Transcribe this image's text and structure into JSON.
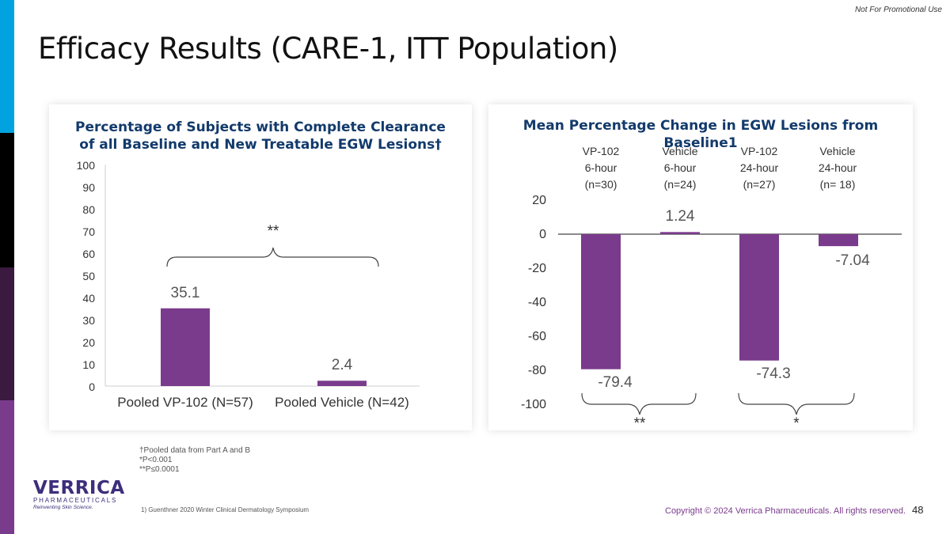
{
  "header": {
    "disclaimer": "Not For Promotional Use",
    "title": "Efficacy Results (CARE-1, ITT Population)"
  },
  "colors": {
    "bar": "#7a3b8c",
    "title": "#123a6b",
    "accent": "#00a3e0"
  },
  "chart_data": [
    {
      "type": "bar",
      "title": "Percentage of Subjects with Complete Clearance of all Baseline and New Treatable EGW Lesions†",
      "categories": [
        "Pooled VP-102 (N=57)",
        "Pooled Vehicle (N=42)"
      ],
      "values": [
        35.1,
        2.4
      ],
      "value_labels": [
        "35.1",
        "2.4"
      ],
      "ylim": [
        0,
        100
      ],
      "yticks": [
        "100",
        "90",
        "80",
        "70",
        "60",
        "50",
        "40",
        "30",
        "20",
        "10",
        "0"
      ],
      "significance": "**"
    },
    {
      "type": "bar",
      "title": "Mean Percentage Change in EGW Lesions from Baseline1",
      "categories": [
        {
          "line1": "VP-102",
          "line2": "6-hour",
          "line3": "(n=30)"
        },
        {
          "line1": "Vehicle",
          "line2": "6-hour",
          "line3": "(n=24)"
        },
        {
          "line1": "VP-102",
          "line2": "24-hour",
          "line3": "(n=27)"
        },
        {
          "line1": "Vehicle",
          "line2": "24-hour",
          "line3": "(n= 18)"
        }
      ],
      "values": [
        -79.4,
        1.24,
        -74.3,
        -7.04
      ],
      "value_labels": [
        "-79.4",
        "1.24",
        "-74.3",
        "-7.04"
      ],
      "ylim": [
        -100,
        20
      ],
      "yticks": [
        "20",
        "0",
        "-20",
        "-40",
        "-60",
        "-80",
        "-100"
      ],
      "significance": [
        "**",
        "*"
      ]
    }
  ],
  "footnotes": {
    "line1": "†Pooled data from Part A and B",
    "line2": "*P<0.001",
    "line3": "**P≤0.0001"
  },
  "footer": {
    "logo_name": "VERRICA",
    "logo_sub": "PHARMACEUTICALS",
    "logo_tag": "Reinventing Skin Science.",
    "reference": "1)     Guenthner 2020 Winter Clinical Dermatology Symposium",
    "copyright": "Copyright © 2024 Verrica Pharmaceuticals. All rights reserved.",
    "page_number": "48"
  }
}
